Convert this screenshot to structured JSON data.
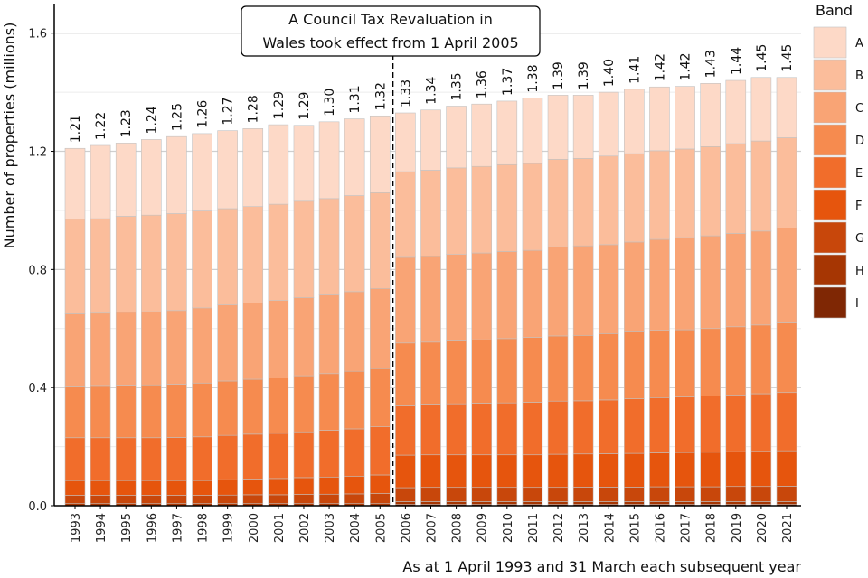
{
  "chart_data": {
    "type": "bar",
    "stacked": true,
    "categories": [
      "1993",
      "1994",
      "1995",
      "1996",
      "1997",
      "1998",
      "1999",
      "2000",
      "2001",
      "2002",
      "2003",
      "2004",
      "2005",
      "2006",
      "2007",
      "2008",
      "2009",
      "2010",
      "2011",
      "2012",
      "2013",
      "2014",
      "2015",
      "2016",
      "2017",
      "2018",
      "2019",
      "2020",
      "2021"
    ],
    "totals": [
      "1.21",
      "1.22",
      "1.23",
      "1.24",
      "1.25",
      "1.26",
      "1.27",
      "1.28",
      "1.29",
      "1.29",
      "1.30",
      "1.31",
      "1.32",
      "1.33",
      "1.34",
      "1.35",
      "1.36",
      "1.37",
      "1.38",
      "1.39",
      "1.39",
      "1.40",
      "1.41",
      "1.42",
      "1.42",
      "1.43",
      "1.44",
      "1.45",
      "1.45"
    ],
    "series": [
      {
        "name": "I",
        "color": "#7f2704",
        "values": [
          0,
          0,
          0,
          0,
          0,
          0,
          0,
          0,
          0,
          0,
          0,
          0,
          0,
          0.004,
          0.004,
          0.004,
          0.004,
          0.004,
          0.004,
          0.004,
          0.004,
          0.004,
          0.004,
          0.004,
          0.004,
          0.004,
          0.004,
          0.004,
          0.004
        ]
      },
      {
        "name": "H",
        "color": "#a63603",
        "values": [
          0.007,
          0.007,
          0.007,
          0.007,
          0.007,
          0.007,
          0.007,
          0.007,
          0.007,
          0.007,
          0.007,
          0.007,
          0.007,
          0.01,
          0.01,
          0.01,
          0.01,
          0.01,
          0.01,
          0.01,
          0.01,
          0.01,
          0.01,
          0.01,
          0.01,
          0.01,
          0.01,
          0.01,
          0.01
        ]
      },
      {
        "name": "G",
        "color": "#c8470b",
        "values": [
          0.028,
          0.028,
          0.028,
          0.028,
          0.028,
          0.028,
          0.029,
          0.03,
          0.03,
          0.031,
          0.032,
          0.033,
          0.034,
          0.047,
          0.048,
          0.048,
          0.048,
          0.048,
          0.048,
          0.048,
          0.049,
          0.049,
          0.049,
          0.05,
          0.05,
          0.05,
          0.051,
          0.051,
          0.052
        ]
      },
      {
        "name": "F",
        "color": "#e6550d",
        "values": [
          0.05,
          0.05,
          0.05,
          0.05,
          0.05,
          0.05,
          0.052,
          0.053,
          0.055,
          0.057,
          0.058,
          0.06,
          0.063,
          0.11,
          0.11,
          0.11,
          0.11,
          0.11,
          0.11,
          0.112,
          0.112,
          0.113,
          0.114,
          0.115,
          0.116,
          0.117,
          0.118,
          0.119,
          0.12
        ]
      },
      {
        "name": "E",
        "color": "#f16d2b",
        "values": [
          0.145,
          0.145,
          0.145,
          0.145,
          0.146,
          0.148,
          0.15,
          0.152,
          0.153,
          0.155,
          0.158,
          0.16,
          0.163,
          0.17,
          0.172,
          0.173,
          0.175,
          0.176,
          0.178,
          0.18,
          0.18,
          0.182,
          0.185,
          0.187,
          0.188,
          0.19,
          0.192,
          0.195,
          0.197
        ]
      },
      {
        "name": "D",
        "color": "#f68b4f",
        "values": [
          0.175,
          0.177,
          0.178,
          0.179,
          0.18,
          0.182,
          0.184,
          0.186,
          0.188,
          0.19,
          0.192,
          0.195,
          0.197,
          0.21,
          0.21,
          0.213,
          0.215,
          0.218,
          0.22,
          0.221,
          0.222,
          0.225,
          0.227,
          0.228,
          0.228,
          0.229,
          0.231,
          0.233,
          0.236
        ]
      },
      {
        "name": "C",
        "color": "#f9a475",
        "values": [
          0.245,
          0.245,
          0.247,
          0.248,
          0.25,
          0.255,
          0.258,
          0.258,
          0.262,
          0.265,
          0.267,
          0.27,
          0.272,
          0.29,
          0.29,
          0.293,
          0.294,
          0.295,
          0.295,
          0.302,
          0.303,
          0.301,
          0.304,
          0.308,
          0.312,
          0.314,
          0.316,
          0.318,
          0.321
        ]
      },
      {
        "name": "B",
        "color": "#fbbd9b",
        "values": [
          0.32,
          0.32,
          0.325,
          0.327,
          0.328,
          0.328,
          0.326,
          0.327,
          0.326,
          0.326,
          0.326,
          0.325,
          0.324,
          0.29,
          0.292,
          0.293,
          0.293,
          0.294,
          0.294,
          0.296,
          0.296,
          0.3,
          0.299,
          0.3,
          0.3,
          0.302,
          0.304,
          0.305,
          0.306
        ]
      },
      {
        "name": "A",
        "color": "#fdd9c7",
        "values": [
          0.24,
          0.248,
          0.248,
          0.256,
          0.261,
          0.262,
          0.264,
          0.264,
          0.269,
          0.257,
          0.26,
          0.26,
          0.26,
          0.199,
          0.204,
          0.209,
          0.211,
          0.215,
          0.221,
          0.217,
          0.214,
          0.216,
          0.218,
          0.216,
          0.212,
          0.214,
          0.214,
          0.215,
          0.204
        ]
      }
    ],
    "ylim": [
      0,
      1.7
    ],
    "yticks": [
      0.0,
      0.4,
      0.8,
      1.2,
      1.6
    ],
    "ytick_labels": [
      "0.0",
      "0.4",
      "0.8",
      "1.2",
      "1.6"
    ],
    "ylabel": "Number of properties (millions)",
    "xlabel": "As at 1 April 1993 and 31 March each subsequent year",
    "legend_title": "Band",
    "legend_order": [
      "A",
      "B",
      "C",
      "D",
      "E",
      "F",
      "G",
      "H",
      "I"
    ],
    "legend_position": "right",
    "grid": "horizontal",
    "revaluation_line_after": "2005",
    "annotation": [
      "A Council Tax Revaluation in",
      "Wales took effect from 1 April 2005"
    ]
  }
}
